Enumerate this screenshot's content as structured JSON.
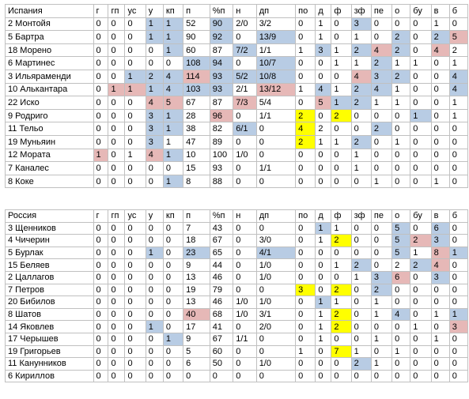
{
  "highlight_colors": {
    "b": "#b8cce4",
    "r": "#e6b8b7",
    "y": "#ffff00"
  },
  "tables": [
    {
      "header": [
        "Испания",
        "г",
        "гп",
        "ус",
        "у",
        "кп",
        "п",
        "%п",
        "н",
        "дп",
        "по",
        "д",
        "ф",
        "зф",
        "пе",
        "о",
        "бу",
        "в",
        "б"
      ],
      "rows": [
        [
          "2 Монтойя",
          "0",
          "0",
          "0",
          "1",
          "1",
          "52",
          "90",
          "2/0",
          "3/2",
          "0",
          "1",
          "0",
          "3",
          "0",
          "0",
          "0",
          "1",
          "0"
        ],
        [
          "5 Бартра",
          "0",
          "0",
          "0",
          "1",
          "1",
          "90",
          "92",
          "0",
          "13/9",
          "0",
          "1",
          "0",
          "1",
          "0",
          "2",
          "0",
          "2",
          "5"
        ],
        [
          "18 Морено",
          "0",
          "0",
          "0",
          "0",
          "1",
          "60",
          "87",
          "7/2",
          "1/1",
          "1",
          "3",
          "1",
          "2",
          "4",
          "2",
          "0",
          "4",
          "2"
        ],
        [
          "6 Мартинес",
          "0",
          "0",
          "0",
          "0",
          "0",
          "108",
          "94",
          "0",
          "10/7",
          "0",
          "0",
          "1",
          "1",
          "2",
          "1",
          "1",
          "0",
          "1"
        ],
        [
          "3 Ильяраменди",
          "0",
          "0",
          "1",
          "2",
          "4",
          "114",
          "93",
          "5/2",
          "10/8",
          "0",
          "0",
          "0",
          "4",
          "3",
          "2",
          "0",
          "0",
          "4"
        ],
        [
          "10 Алькантара",
          "0",
          "1",
          "1",
          "1",
          "4",
          "103",
          "93",
          "2/1",
          "13/12",
          "1",
          "4",
          "1",
          "2",
          "4",
          "1",
          "0",
          "0",
          "4"
        ],
        [
          "22 Иско",
          "0",
          "0",
          "0",
          "4",
          "5",
          "67",
          "87",
          "7/3",
          "5/4",
          "0",
          "5",
          "1",
          "2",
          "1",
          "1",
          "0",
          "0",
          "1"
        ],
        [
          "9 Родриго",
          "0",
          "0",
          "0",
          "3",
          "1",
          "28",
          "96",
          "0",
          "1/1",
          "2",
          "0",
          "2",
          "0",
          "0",
          "0",
          "1",
          "0",
          "1"
        ],
        [
          "11 Тельо",
          "0",
          "0",
          "0",
          "3",
          "1",
          "38",
          "82",
          "6/1",
          "0",
          "4",
          "2",
          "0",
          "0",
          "2",
          "0",
          "0",
          "0",
          "0"
        ],
        [
          "19 Муньяин",
          "0",
          "0",
          "0",
          "3",
          "1",
          "47",
          "89",
          "0",
          "0",
          "2",
          "1",
          "1",
          "2",
          "0",
          "1",
          "0",
          "0",
          "0"
        ],
        [
          "12 Мората",
          "1",
          "0",
          "1",
          "4",
          "1",
          "10",
          "100",
          "1/0",
          "0",
          "0",
          "0",
          "0",
          "1",
          "0",
          "0",
          "0",
          "0",
          "0"
        ],
        [
          "7 Каналес",
          "0",
          "0",
          "0",
          "0",
          "0",
          "15",
          "93",
          "0",
          "1/1",
          "0",
          "0",
          "0",
          "1",
          "0",
          "0",
          "0",
          "0",
          "0"
        ],
        [
          "8 Коке",
          "0",
          "0",
          "0",
          "0",
          "1",
          "8",
          "88",
          "0",
          "0",
          "0",
          "0",
          "0",
          "0",
          "1",
          "0",
          "0",
          "1",
          "0"
        ]
      ],
      "highlights": [
        [
          0,
          4,
          "b"
        ],
        [
          0,
          5,
          "b"
        ],
        [
          0,
          7,
          "b"
        ],
        [
          0,
          13,
          "b"
        ],
        [
          1,
          4,
          "b"
        ],
        [
          1,
          5,
          "b"
        ],
        [
          1,
          7,
          "b"
        ],
        [
          1,
          9,
          "b"
        ],
        [
          1,
          15,
          "b"
        ],
        [
          1,
          17,
          "b"
        ],
        [
          1,
          18,
          "r"
        ],
        [
          2,
          5,
          "b"
        ],
        [
          2,
          8,
          "b"
        ],
        [
          2,
          11,
          "b"
        ],
        [
          2,
          13,
          "b"
        ],
        [
          2,
          14,
          "r"
        ],
        [
          2,
          15,
          "b"
        ],
        [
          2,
          17,
          "r"
        ],
        [
          3,
          6,
          "b"
        ],
        [
          3,
          7,
          "b"
        ],
        [
          3,
          9,
          "b"
        ],
        [
          3,
          14,
          "b"
        ],
        [
          4,
          3,
          "b"
        ],
        [
          4,
          4,
          "b"
        ],
        [
          4,
          5,
          "b"
        ],
        [
          4,
          6,
          "r"
        ],
        [
          4,
          7,
          "b"
        ],
        [
          4,
          8,
          "b"
        ],
        [
          4,
          9,
          "b"
        ],
        [
          4,
          13,
          "r"
        ],
        [
          4,
          14,
          "b"
        ],
        [
          4,
          15,
          "b"
        ],
        [
          4,
          18,
          "b"
        ],
        [
          5,
          2,
          "r"
        ],
        [
          5,
          3,
          "r"
        ],
        [
          5,
          4,
          "b"
        ],
        [
          5,
          5,
          "b"
        ],
        [
          5,
          6,
          "b"
        ],
        [
          5,
          7,
          "b"
        ],
        [
          5,
          9,
          "r"
        ],
        [
          5,
          11,
          "b"
        ],
        [
          5,
          13,
          "b"
        ],
        [
          5,
          14,
          "b"
        ],
        [
          5,
          18,
          "b"
        ],
        [
          6,
          4,
          "r"
        ],
        [
          6,
          5,
          "r"
        ],
        [
          6,
          8,
          "r"
        ],
        [
          6,
          11,
          "r"
        ],
        [
          6,
          12,
          "b"
        ],
        [
          6,
          13,
          "b"
        ],
        [
          7,
          4,
          "b"
        ],
        [
          7,
          5,
          "b"
        ],
        [
          7,
          7,
          "r"
        ],
        [
          7,
          10,
          "y"
        ],
        [
          7,
          12,
          "y"
        ],
        [
          7,
          16,
          "b"
        ],
        [
          8,
          4,
          "b"
        ],
        [
          8,
          5,
          "b"
        ],
        [
          8,
          8,
          "b"
        ],
        [
          8,
          10,
          "y"
        ],
        [
          8,
          14,
          "b"
        ],
        [
          9,
          4,
          "b"
        ],
        [
          9,
          10,
          "y"
        ],
        [
          9,
          13,
          "b"
        ],
        [
          10,
          1,
          "r"
        ],
        [
          10,
          4,
          "r"
        ],
        [
          10,
          5,
          "b"
        ],
        [
          12,
          5,
          "b"
        ]
      ]
    },
    {
      "header": [
        "Россия",
        "г",
        "гп",
        "ус",
        "у",
        "кп",
        "п",
        "%п",
        "н",
        "дп",
        "по",
        "д",
        "ф",
        "зф",
        "пе",
        "о",
        "бу",
        "в",
        "б"
      ],
      "rows": [
        [
          "3 Щенников",
          "0",
          "0",
          "0",
          "0",
          "0",
          "7",
          "43",
          "0",
          "0",
          "0",
          "1",
          "1",
          "0",
          "0",
          "5",
          "0",
          "6",
          "0"
        ],
        [
          "4 Чичерин",
          "0",
          "0",
          "0",
          "0",
          "0",
          "18",
          "67",
          "0",
          "3/0",
          "0",
          "1",
          "2",
          "0",
          "0",
          "5",
          "2",
          "3",
          "0"
        ],
        [
          "5 Бурлак",
          "0",
          "0",
          "0",
          "1",
          "0",
          "23",
          "65",
          "0",
          "4/1",
          "0",
          "0",
          "0",
          "0",
          "0",
          "5",
          "1",
          "8",
          "1"
        ],
        [
          "15 Беляев",
          "0",
          "0",
          "0",
          "0",
          "0",
          "9",
          "44",
          "0",
          "1/0",
          "0",
          "0",
          "1",
          "2",
          "0",
          "2",
          "2",
          "4",
          "0"
        ],
        [
          "2 Цаллагов",
          "0",
          "0",
          "0",
          "0",
          "0",
          "13",
          "46",
          "0",
          "1/0",
          "0",
          "0",
          "0",
          "1",
          "3",
          "6",
          "0",
          "3",
          "0"
        ],
        [
          "7 Петров",
          "0",
          "0",
          "0",
          "0",
          "0",
          "19",
          "79",
          "0",
          "0",
          "3",
          "0",
          "2",
          "0",
          "2",
          "0",
          "0",
          "0",
          "0"
        ],
        [
          "20 Бибилов",
          "0",
          "0",
          "0",
          "0",
          "0",
          "13",
          "46",
          "1/0",
          "1/0",
          "0",
          "1",
          "1",
          "0",
          "1",
          "0",
          "0",
          "0",
          "0"
        ],
        [
          "8 Шатов",
          "0",
          "0",
          "0",
          "0",
          "0",
          "40",
          "68",
          "1/0",
          "3/1",
          "0",
          "1",
          "2",
          "0",
          "1",
          "4",
          "0",
          "1",
          "1"
        ],
        [
          "14 Яковлев",
          "0",
          "0",
          "0",
          "1",
          "0",
          "17",
          "41",
          "0",
          "2/0",
          "0",
          "1",
          "2",
          "0",
          "0",
          "0",
          "1",
          "0",
          "3"
        ],
        [
          "17 Черышев",
          "0",
          "0",
          "0",
          "0",
          "1",
          "9",
          "67",
          "1/1",
          "0",
          "0",
          "1",
          "0",
          "0",
          "1",
          "0",
          "0",
          "1",
          "0"
        ],
        [
          "19 Григорьев",
          "0",
          "0",
          "0",
          "0",
          "0",
          "5",
          "60",
          "0",
          "0",
          "1",
          "0",
          "7",
          "1",
          "0",
          "1",
          "0",
          "0",
          "0"
        ],
        [
          "11 Канунников",
          "0",
          "0",
          "0",
          "0",
          "0",
          "6",
          "50",
          "0",
          "1/0",
          "0",
          "0",
          "0",
          "2",
          "1",
          "0",
          "0",
          "0",
          "0"
        ],
        [
          "6 Кириллов",
          "0",
          "0",
          "0",
          "0",
          "0",
          "0",
          "0",
          "0",
          "0",
          "0",
          "0",
          "0",
          "0",
          "0",
          "0",
          "0",
          "0",
          "0"
        ]
      ],
      "highlights": [
        [
          0,
          11,
          "b"
        ],
        [
          0,
          15,
          "b"
        ],
        [
          0,
          17,
          "b"
        ],
        [
          1,
          12,
          "y"
        ],
        [
          1,
          15,
          "b"
        ],
        [
          1,
          16,
          "r"
        ],
        [
          1,
          17,
          "b"
        ],
        [
          2,
          4,
          "b"
        ],
        [
          2,
          6,
          "b"
        ],
        [
          2,
          9,
          "b"
        ],
        [
          2,
          15,
          "b"
        ],
        [
          2,
          17,
          "r"
        ],
        [
          2,
          18,
          "b"
        ],
        [
          3,
          13,
          "b"
        ],
        [
          3,
          16,
          "b"
        ],
        [
          3,
          17,
          "r"
        ],
        [
          4,
          14,
          "b"
        ],
        [
          4,
          15,
          "r"
        ],
        [
          4,
          17,
          "b"
        ],
        [
          5,
          10,
          "y"
        ],
        [
          5,
          12,
          "y"
        ],
        [
          5,
          14,
          "b"
        ],
        [
          6,
          11,
          "b"
        ],
        [
          7,
          6,
          "r"
        ],
        [
          7,
          12,
          "y"
        ],
        [
          7,
          15,
          "b"
        ],
        [
          7,
          18,
          "b"
        ],
        [
          8,
          4,
          "b"
        ],
        [
          8,
          12,
          "y"
        ],
        [
          8,
          18,
          "r"
        ],
        [
          9,
          5,
          "b"
        ],
        [
          10,
          12,
          "y"
        ],
        [
          11,
          13,
          "b"
        ]
      ]
    }
  ]
}
